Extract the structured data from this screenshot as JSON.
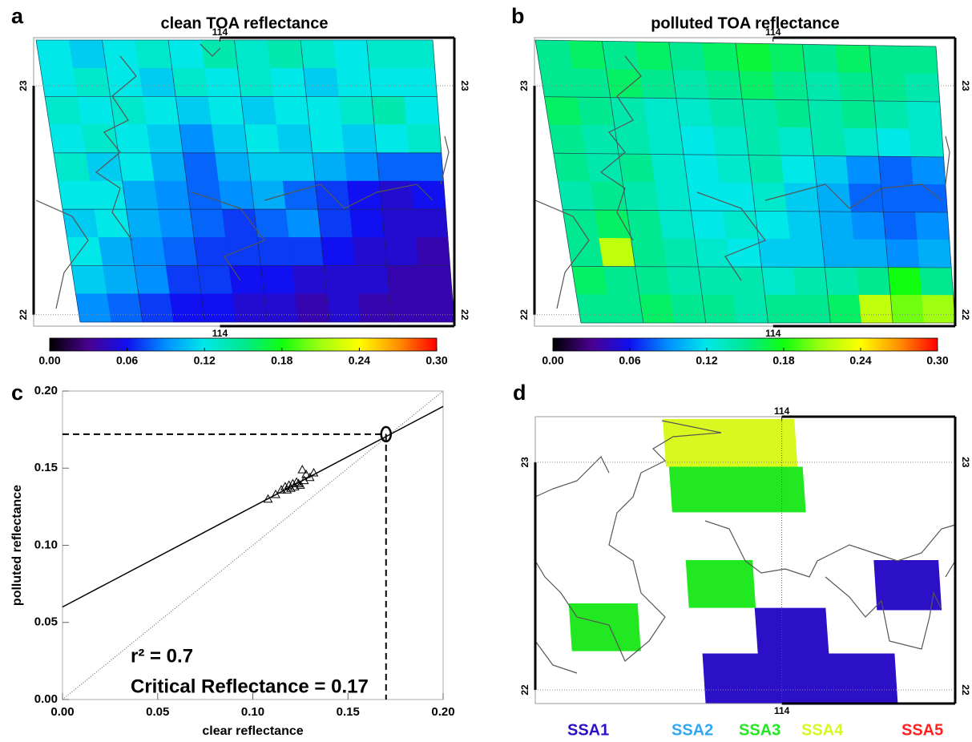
{
  "chart_data": [
    {
      "type": "heatmap",
      "label": "a",
      "title": "clean TOA reflectance",
      "xlim": [
        113.11,
        115.12
      ],
      "xticks": [
        114
      ],
      "ylim": [
        21.95,
        23.21
      ],
      "yticks": [
        22,
        23
      ],
      "values": [
        [
          0.12,
          0.11,
          0.12,
          0.13,
          0.12,
          0.14,
          0.13,
          0.14,
          0.13,
          0.12,
          0.13,
          0.13
        ],
        [
          0.12,
          0.13,
          0.12,
          0.11,
          0.13,
          0.12,
          0.13,
          0.12,
          0.11,
          0.12,
          0.12,
          0.12
        ],
        [
          0.13,
          0.12,
          0.13,
          0.12,
          0.11,
          0.12,
          0.11,
          0.12,
          0.12,
          0.13,
          0.14,
          0.12
        ],
        [
          0.12,
          0.13,
          0.12,
          0.11,
          0.09,
          0.11,
          0.12,
          0.11,
          0.12,
          0.11,
          0.12,
          0.13
        ],
        [
          0.13,
          0.11,
          0.12,
          0.1,
          0.08,
          0.1,
          0.11,
          0.11,
          0.1,
          0.09,
          0.08,
          0.08
        ],
        [
          0.12,
          0.12,
          0.1,
          0.09,
          0.08,
          0.09,
          0.1,
          0.08,
          0.07,
          0.06,
          0.05,
          0.06
        ],
        [
          0.11,
          0.12,
          0.1,
          0.09,
          0.08,
          0.07,
          0.08,
          0.09,
          0.07,
          0.06,
          0.05,
          0.05
        ],
        [
          0.12,
          0.1,
          0.09,
          0.08,
          0.07,
          0.07,
          0.07,
          0.07,
          0.06,
          0.05,
          0.05,
          0.04
        ],
        [
          0.11,
          0.1,
          0.09,
          0.07,
          0.07,
          0.06,
          0.06,
          0.05,
          0.05,
          0.05,
          0.04,
          0.04
        ],
        [
          0.09,
          0.08,
          0.07,
          0.06,
          0.06,
          0.05,
          0.05,
          0.04,
          0.05,
          0.04,
          0.04,
          0.04
        ]
      ],
      "clim": [
        0,
        0.3
      ],
      "colorscale": [
        "#000000",
        "#4a0090",
        "#1010f0",
        "#0090ff",
        "#00e8e8",
        "#00e890",
        "#10ff10",
        "#a0ff10",
        "#ffff00",
        "#ff9000",
        "#ff0000"
      ],
      "cticks": [
        {
          "value": 0,
          "label": "0.00"
        },
        {
          "value": 0.06,
          "label": "0.06"
        },
        {
          "value": 0.12,
          "label": "0.12"
        },
        {
          "value": 0.18,
          "label": "0.18"
        },
        {
          "value": 0.24,
          "label": "0.24"
        },
        {
          "value": 0.3,
          "label": "0.30"
        }
      ]
    },
    {
      "type": "heatmap",
      "label": "b",
      "title": "polluted TOA reflectance",
      "xlim": [
        112.86,
        114.87
      ],
      "xticks": [
        114
      ],
      "ylim": [
        21.95,
        23.21
      ],
      "yticks": [
        22,
        23
      ],
      "values": [
        [
          0.15,
          0.16,
          0.15,
          0.16,
          0.15,
          0.16,
          0.17,
          0.16,
          0.15,
          0.16,
          0.15,
          0.15
        ],
        [
          0.15,
          0.15,
          0.16,
          0.15,
          0.14,
          0.15,
          0.16,
          0.15,
          0.14,
          0.15,
          0.15,
          0.14
        ],
        [
          0.16,
          0.15,
          0.14,
          0.13,
          0.13,
          0.14,
          0.14,
          0.15,
          0.14,
          0.15,
          0.14,
          0.13
        ],
        [
          0.15,
          0.14,
          0.14,
          0.13,
          0.12,
          0.13,
          0.14,
          0.13,
          0.14,
          0.13,
          0.12,
          0.13
        ],
        [
          0.15,
          0.14,
          0.15,
          0.13,
          0.12,
          0.13,
          0.14,
          0.12,
          0.11,
          0.09,
          0.08,
          0.09
        ],
        [
          0.14,
          0.15,
          0.14,
          0.13,
          0.12,
          0.12,
          0.13,
          0.11,
          0.1,
          0.08,
          0.08,
          0.08
        ],
        [
          0.15,
          0.16,
          0.15,
          0.13,
          0.12,
          0.13,
          0.12,
          0.11,
          0.1,
          0.09,
          0.08,
          0.09
        ],
        [
          0.15,
          0.22,
          0.15,
          0.14,
          0.13,
          0.12,
          0.11,
          0.11,
          0.1,
          0.1,
          0.09,
          0.1
        ],
        [
          0.16,
          0.15,
          0.15,
          0.14,
          0.14,
          0.14,
          0.13,
          0.14,
          0.14,
          0.15,
          0.18,
          0.15
        ],
        [
          0.15,
          0.15,
          0.16,
          0.15,
          0.15,
          0.14,
          0.15,
          0.15,
          0.16,
          0.22,
          0.2,
          0.21
        ]
      ],
      "clim": [
        0,
        0.3
      ],
      "colorscale": [
        "#000000",
        "#4a0090",
        "#1010f0",
        "#0090ff",
        "#00e8e8",
        "#00e890",
        "#10ff10",
        "#a0ff10",
        "#ffff00",
        "#ff9000",
        "#ff0000"
      ],
      "cticks": [
        {
          "value": 0,
          "label": "0.00"
        },
        {
          "value": 0.06,
          "label": "0.06"
        },
        {
          "value": 0.12,
          "label": "0.12"
        },
        {
          "value": 0.18,
          "label": "0.18"
        },
        {
          "value": 0.24,
          "label": "0.24"
        },
        {
          "value": 0.3,
          "label": "0.30"
        }
      ]
    },
    {
      "type": "scatter",
      "label": "c",
      "xlabel": "clear reflectance",
      "ylabel": "polluted reflectance",
      "xlim": [
        0,
        0.2
      ],
      "ylim": [
        0,
        0.2
      ],
      "xticks": [
        {
          "value": 0,
          "label": "0.00"
        },
        {
          "value": 0.05,
          "label": "0.05"
        },
        {
          "value": 0.1,
          "label": "0.10"
        },
        {
          "value": 0.15,
          "label": "0.15"
        },
        {
          "value": 0.2,
          "label": "0.20"
        }
      ],
      "yticks": [
        {
          "value": 0,
          "label": "0.00"
        },
        {
          "value": 0.05,
          "label": "0.05"
        },
        {
          "value": 0.1,
          "label": "0.10"
        },
        {
          "value": 0.15,
          "label": "0.15"
        },
        {
          "value": 0.2,
          "label": "0.20"
        }
      ],
      "x": [
        0.108,
        0.112,
        0.115,
        0.117,
        0.118,
        0.119,
        0.12,
        0.121,
        0.122,
        0.123,
        0.124,
        0.125,
        0.126,
        0.127,
        0.128,
        0.13,
        0.132
      ],
      "y": [
        0.13,
        0.133,
        0.136,
        0.138,
        0.136,
        0.139,
        0.137,
        0.14,
        0.138,
        0.141,
        0.14,
        0.139,
        0.149,
        0.142,
        0.146,
        0.144,
        0.147
      ],
      "fit": {
        "x": [
          0,
          0.2
        ],
        "y": [
          0.06,
          0.19
        ]
      },
      "reference_line": {
        "x": [
          0,
          0.2
        ],
        "y": [
          0,
          0.2
        ]
      },
      "critical": {
        "x": 0.17,
        "y": 0.172
      },
      "annotations": [
        "r² = 0.7",
        "Critical Reflectance = 0.17"
      ]
    },
    {
      "type": "classmap",
      "label": "d",
      "xlim": [
        112.82,
        114.83
      ],
      "xticks": [
        114
      ],
      "ylim": [
        21.94,
        23.2
      ],
      "yticks": [
        22,
        23
      ],
      "legend": [
        {
          "name": "SSA1",
          "color": "#2c10c8"
        },
        {
          "name": "SSA2",
          "color": "#30a8f0"
        },
        {
          "name": "SSA3",
          "color": "#22e822"
        },
        {
          "name": "SSA4",
          "color": "#d8f820"
        },
        {
          "name": "SSA5",
          "color": "#ff2020"
        }
      ],
      "cells": [
        {
          "class": "SSA4",
          "lon": [
            113.43,
            114.06
          ],
          "lat": [
            22.98,
            23.19
          ]
        },
        {
          "class": "SSA3",
          "lon": [
            113.46,
            114.1
          ],
          "lat": [
            22.78,
            22.98
          ]
        },
        {
          "class": "SSA3",
          "lon": [
            113.54,
            113.86
          ],
          "lat": [
            22.36,
            22.57
          ]
        },
        {
          "class": "SSA3",
          "lon": [
            112.98,
            113.31
          ],
          "lat": [
            22.17,
            22.38
          ]
        },
        {
          "class": "SSA1",
          "lon": [
            113.87,
            114.21
          ],
          "lat": [
            22.16,
            22.36
          ]
        },
        {
          "class": "SSA1",
          "lon": [
            113.62,
            114.54
          ],
          "lat": [
            21.94,
            22.16
          ]
        },
        {
          "class": "SSA1",
          "lon": [
            114.44,
            114.75
          ],
          "lat": [
            22.35,
            22.57
          ]
        }
      ]
    }
  ]
}
